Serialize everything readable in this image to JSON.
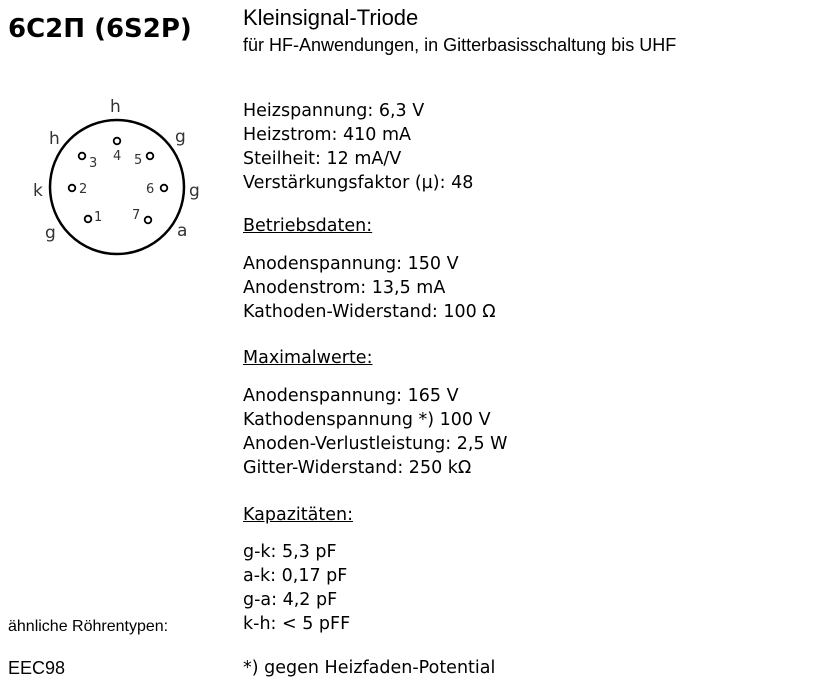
{
  "title": "6C2П (6S2P)",
  "subtitle": "Kleinsignal-Triode",
  "description": "für HF-Anwendungen, in Gitterbasisschaltung bis UHF",
  "pinout": {
    "outer_labels": [
      "h",
      "h",
      "g",
      "k",
      "g",
      "g",
      "a"
    ],
    "pins": [
      "1",
      "2",
      "3",
      "4",
      "5",
      "6",
      "7"
    ]
  },
  "specs": [
    "Heizspannung: 6,3 V",
    "Heizstrom: 410 mA",
    "Steilheit: 12 mA/V",
    "Verstärkungsfaktor (µ): 48"
  ],
  "betrieb": {
    "heading": "Betriebsdaten:",
    "items": [
      "Anodenspannung: 150 V",
      "Anodenstrom: 13,5 mA",
      "Kathoden-Widerstand: 100 Ω"
    ]
  },
  "max": {
    "heading": "Maximalwerte:",
    "items": [
      "Anodenspannung: 165 V",
      "Kathodenspannung *) 100 V",
      "Anoden-Verlustleistung: 2,5 W",
      "Gitter-Widerstand: 250 kΩ"
    ]
  },
  "kap": {
    "heading": "Kapazitäten:",
    "items": [
      "g-k: 5,3 pF",
      "a-k: 0,17 pF",
      "g-a: 4,2 pF",
      "k-h: < 5 pFF"
    ]
  },
  "similar_label": "ähnliche Röhrentypen:",
  "similar_value": "EEC98",
  "footnote": "*) gegen Heizfaden-Potential"
}
